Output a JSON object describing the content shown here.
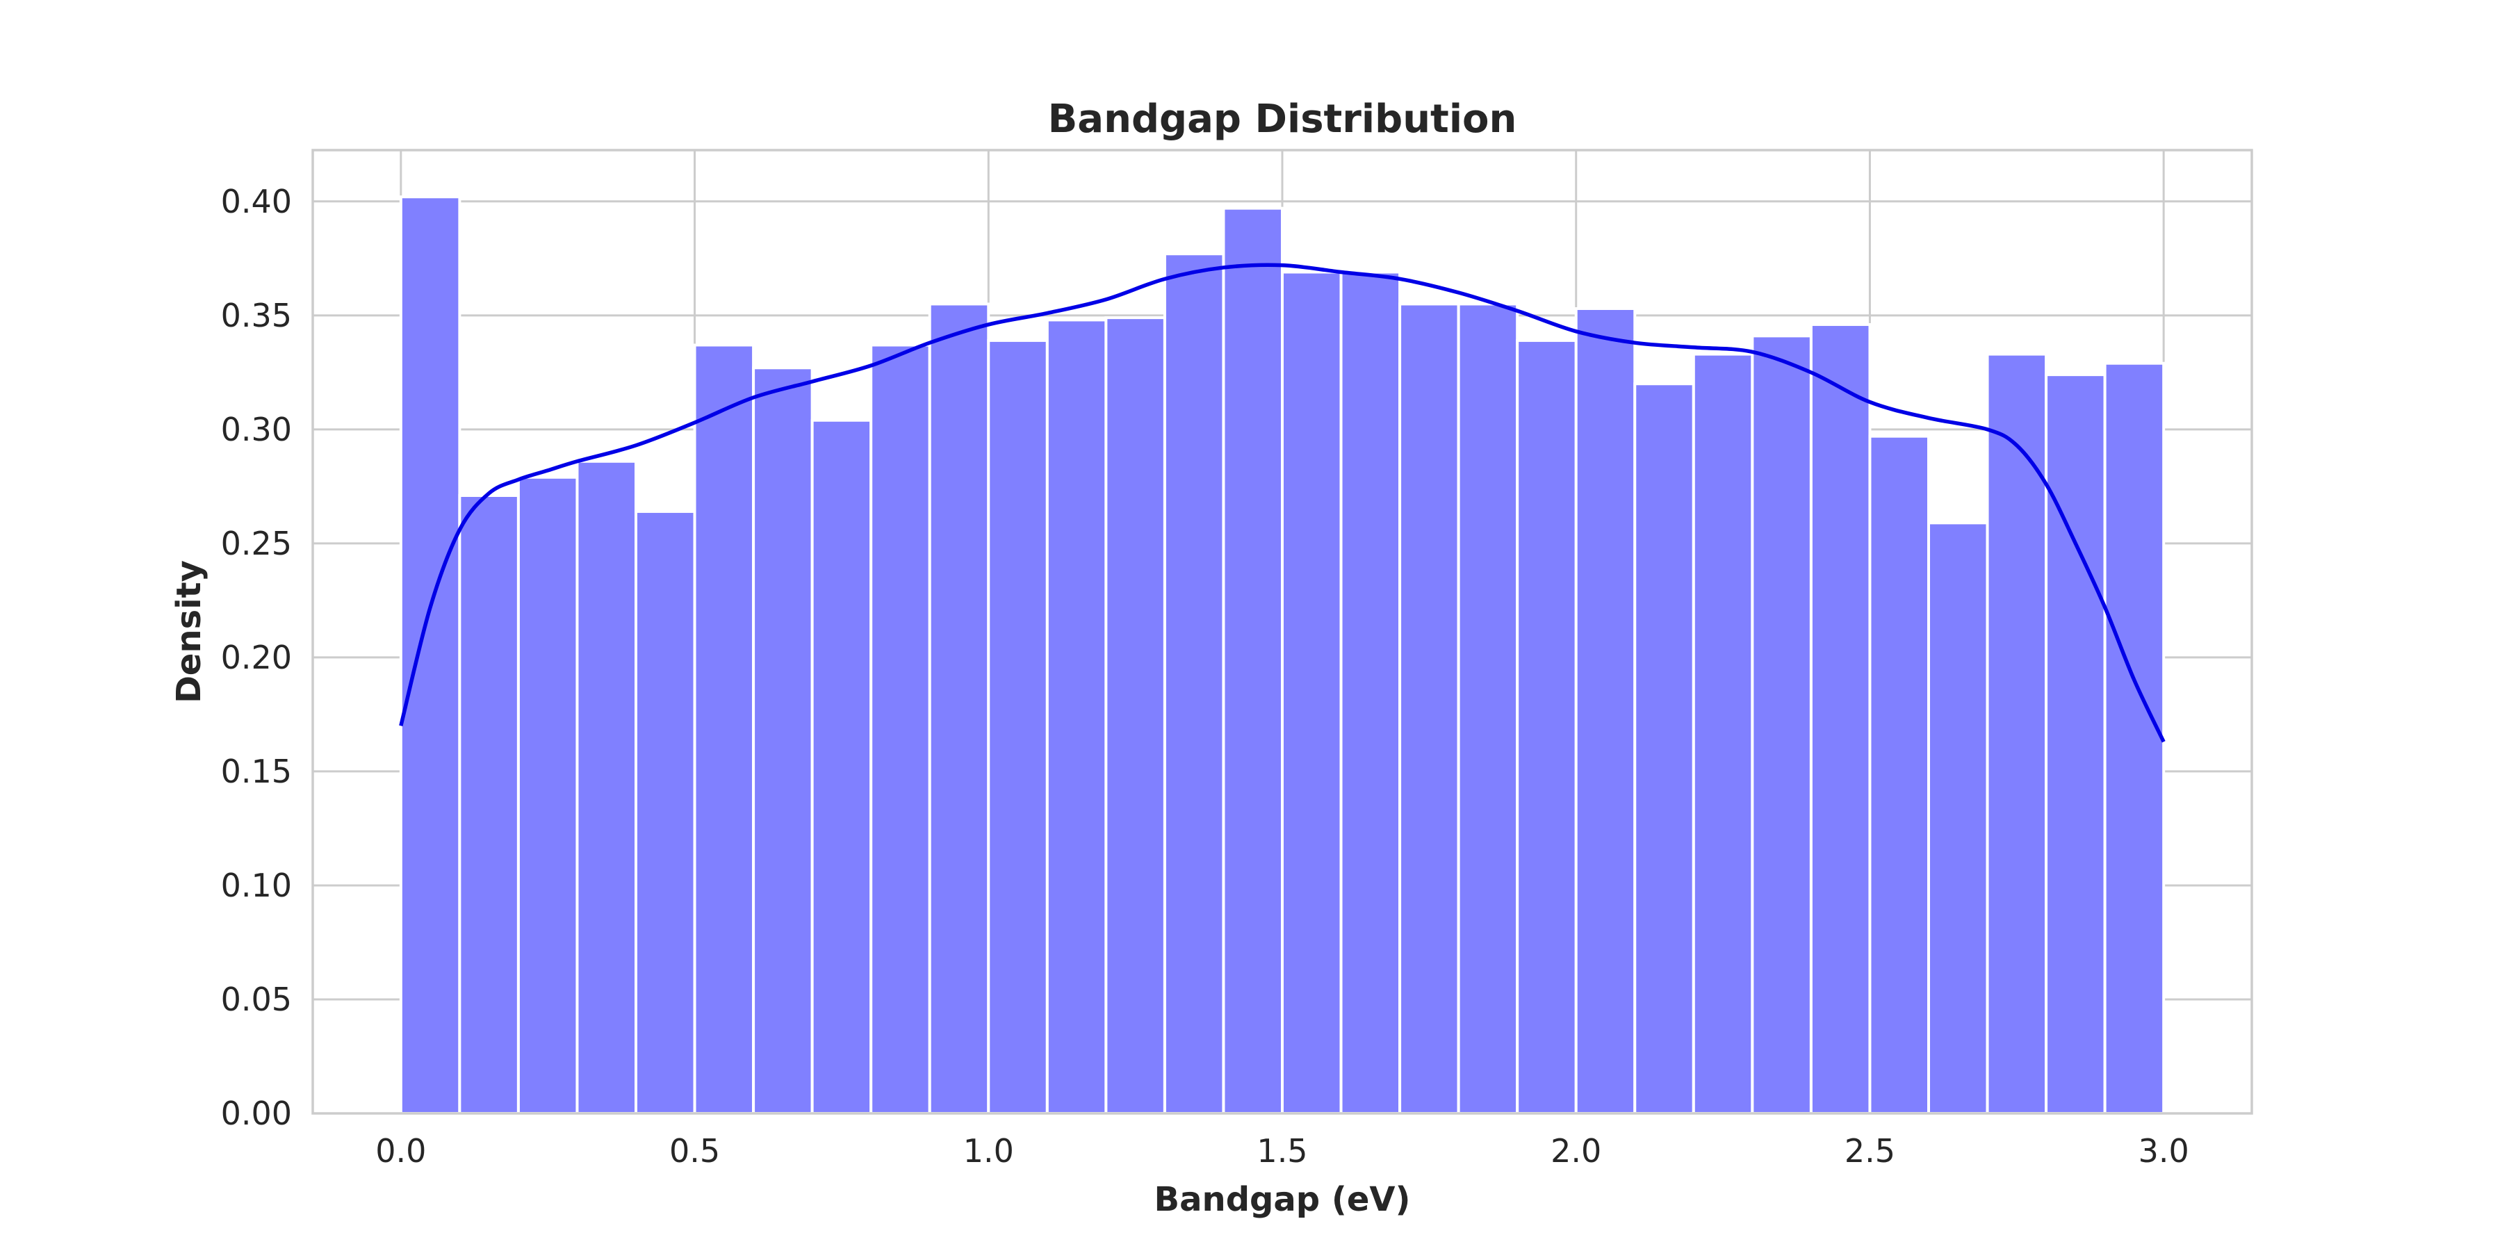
{
  "chart_data": {
    "type": "bar",
    "title": "Bandgap Distribution",
    "xlabel": "Bandgap (eV)",
    "ylabel": "Density",
    "xlim": [
      -0.15,
      3.15
    ],
    "ylim": [
      0,
      0.4225
    ],
    "xticks": [
      0.0,
      0.5,
      1.0,
      1.5,
      2.0,
      2.5,
      3.0
    ],
    "xtick_labels": [
      "0.0",
      "0.5",
      "1.0",
      "1.5",
      "2.0",
      "2.5",
      "3.0"
    ],
    "yticks": [
      0.0,
      0.05,
      0.1,
      0.15,
      0.2,
      0.25,
      0.3,
      0.35,
      0.4
    ],
    "ytick_labels": [
      "0.00",
      "0.05",
      "0.10",
      "0.15",
      "0.20",
      "0.25",
      "0.30",
      "0.35",
      "0.40"
    ],
    "grid": true,
    "legend": "none",
    "histogram": {
      "bin_edges": [
        0.0,
        0.1,
        0.2,
        0.3,
        0.4,
        0.5,
        0.6,
        0.7,
        0.8,
        0.9,
        1.0,
        1.1,
        1.2,
        1.3,
        1.4,
        1.5,
        1.6,
        1.7,
        1.8,
        1.9,
        2.0,
        2.1,
        2.2,
        2.3,
        2.4,
        2.5,
        2.6,
        2.7,
        2.8,
        2.9,
        3.0
      ],
      "values": [
        0.402,
        0.271,
        0.279,
        0.286,
        0.264,
        0.337,
        0.327,
        0.304,
        0.337,
        0.355,
        0.339,
        0.348,
        0.349,
        0.377,
        0.397,
        0.369,
        0.369,
        0.355,
        0.355,
        0.339,
        0.353,
        0.32,
        0.333,
        0.341,
        0.346,
        0.297,
        0.259,
        0.333,
        0.324,
        0.329
      ],
      "color": "#8080ff"
    },
    "kde": {
      "x": [
        0.0,
        0.05,
        0.1,
        0.15,
        0.2,
        0.25,
        0.3,
        0.4,
        0.5,
        0.6,
        0.7,
        0.8,
        0.9,
        1.0,
        1.1,
        1.2,
        1.3,
        1.4,
        1.5,
        1.6,
        1.7,
        1.8,
        1.9,
        2.0,
        2.1,
        2.2,
        2.3,
        2.4,
        2.5,
        2.6,
        2.7,
        2.75,
        2.8,
        2.85,
        2.9,
        2.95,
        3.0
      ],
      "y": [
        0.17,
        0.222,
        0.256,
        0.272,
        0.278,
        0.282,
        0.286,
        0.293,
        0.303,
        0.314,
        0.321,
        0.328,
        0.338,
        0.346,
        0.351,
        0.357,
        0.366,
        0.371,
        0.372,
        0.369,
        0.366,
        0.36,
        0.352,
        0.343,
        0.338,
        0.336,
        0.334,
        0.325,
        0.312,
        0.305,
        0.3,
        0.293,
        0.276,
        0.25,
        0.222,
        0.19,
        0.163
      ],
      "color": "#0000e6"
    }
  }
}
